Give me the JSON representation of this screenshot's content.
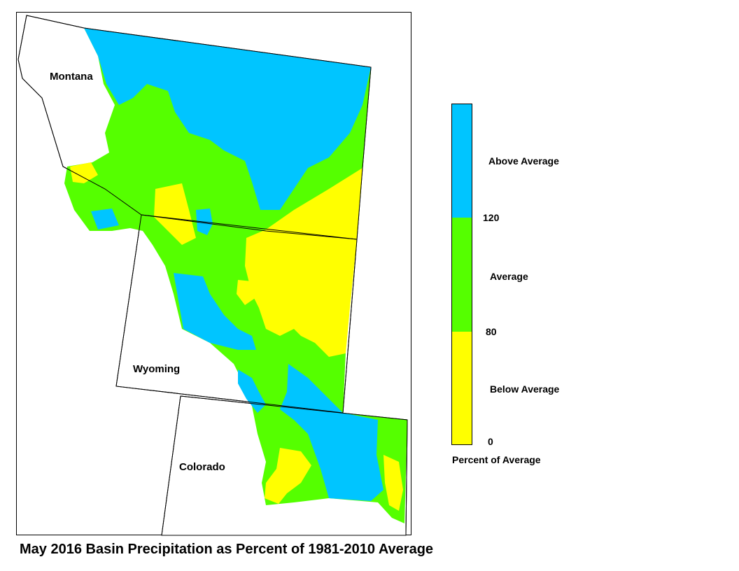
{
  "title": "May 2016 Basin Precipitation as Percent of 1981-2010 Average",
  "states": {
    "montana": "Montana",
    "wyoming": "Wyoming",
    "colorado": "Colorado"
  },
  "legend": {
    "title": "Percent of Average",
    "classes": [
      {
        "label": "Above Average",
        "color": "#00c5ff"
      },
      {
        "label": "Average",
        "color": "#55ff00"
      },
      {
        "label": "Below Average",
        "color": "#ffff00"
      }
    ],
    "breaks": [
      "120",
      "80",
      "0"
    ]
  },
  "colors": {
    "above": "#00c5ff",
    "average": "#55ff00",
    "below": "#ffff00",
    "border": "#000000"
  }
}
